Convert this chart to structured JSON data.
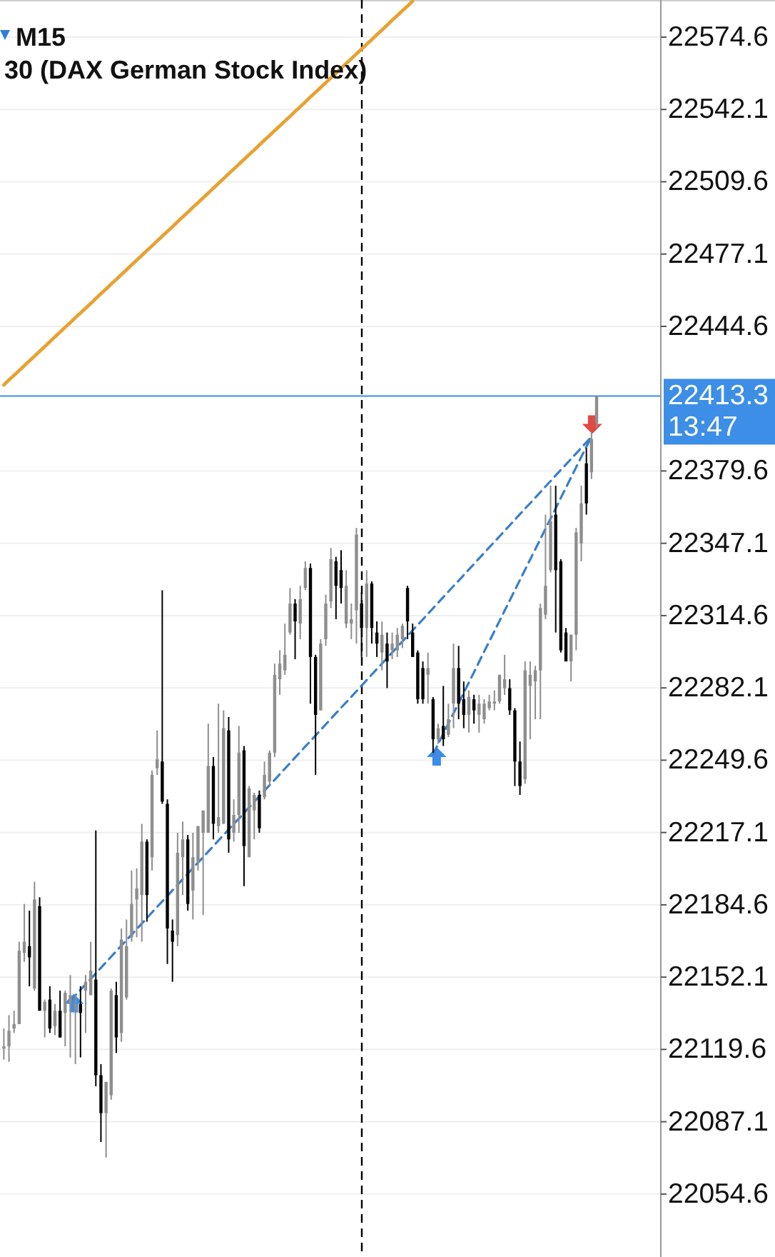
{
  "chart_data": {
    "type": "candlestick",
    "title": "M15",
    "subtitle": "30 (DAX German Stock Index)",
    "categories": [
      null,
      null,
      null,
      null,
      null,
      null,
      null,
      null,
      null,
      null,
      null,
      null,
      null,
      null,
      null,
      null,
      null,
      null,
      null,
      null,
      null,
      null,
      null,
      null,
      null,
      null,
      null,
      null,
      null,
      null,
      null,
      null,
      null,
      null,
      null,
      null,
      null,
      null,
      null,
      null,
      null,
      null,
      null,
      null,
      null,
      null,
      null,
      null,
      null,
      null,
      null,
      null,
      null,
      null,
      null,
      null,
      null,
      null,
      null,
      null,
      null,
      null,
      null,
      null,
      null,
      null,
      null,
      null,
      null,
      null,
      null,
      null,
      null,
      null,
      null,
      null,
      null,
      null,
      null,
      null,
      null,
      null,
      null,
      null,
      null,
      null,
      null,
      null,
      null,
      null,
      null,
      null,
      null,
      null,
      null,
      null,
      null,
      null,
      null,
      null,
      null,
      null,
      null,
      null,
      null,
      null,
      null,
      null,
      null,
      null,
      null,
      null,
      null,
      null,
      null,
      null,
      null
    ],
    "ohlc": [
      [
        22120,
        22129,
        22115,
        22121
      ],
      [
        22121,
        22135,
        22114,
        22128
      ],
      [
        22129,
        22137,
        22127,
        22131
      ],
      [
        22131,
        22168,
        22131,
        22164
      ],
      [
        22163,
        22185,
        22159,
        22168
      ],
      [
        22166,
        22182,
        22148,
        22161
      ],
      [
        22147,
        22195,
        22146,
        22187
      ],
      [
        22184,
        22188,
        22137,
        22137
      ],
      [
        22137,
        22142,
        22125,
        22141
      ],
      [
        22142,
        22148,
        22127,
        22129
      ],
      [
        22130,
        22140,
        22126,
        22137
      ],
      [
        22137,
        22146,
        22125,
        22125
      ],
      [
        22136,
        22146,
        22121,
        22145
      ],
      [
        22140,
        22153,
        22116,
        22144
      ],
      [
        22137,
        22144,
        22113,
        22140
      ],
      [
        22140,
        22148,
        22116,
        22136
      ],
      [
        22146,
        22153,
        22127,
        22150
      ],
      [
        22144,
        22168,
        22144,
        22155
      ],
      [
        22151,
        22218,
        22103,
        22108
      ],
      [
        22108,
        22113,
        22078,
        22091
      ],
      [
        22091,
        22105,
        22071,
        22105
      ],
      [
        22099,
        22147,
        22097,
        22146
      ],
      [
        22144,
        22150,
        22118,
        22125
      ],
      [
        22127,
        22174,
        22123,
        22169
      ],
      [
        22143,
        22178,
        22142,
        22166
      ],
      [
        22170,
        22200,
        22168,
        22185
      ],
      [
        22187,
        22201,
        22170,
        22192
      ],
      [
        22189,
        22221,
        22168,
        22213
      ],
      [
        22213,
        22214,
        22177,
        22189
      ],
      [
        22206,
        22245,
        22200,
        22243
      ],
      [
        22246,
        22263,
        22243,
        22250
      ],
      [
        22249,
        22326,
        22230,
        22231
      ],
      [
        22230,
        22232,
        22158,
        22174
      ],
      [
        22173,
        22178,
        22150,
        22168
      ],
      [
        22171,
        22217,
        22166,
        22208
      ],
      [
        22206,
        22222,
        22189,
        22214
      ],
      [
        22214,
        22216,
        22182,
        22185
      ],
      [
        22191,
        22217,
        22178,
        22206
      ],
      [
        22204,
        22220,
        22200,
        22220
      ],
      [
        22217,
        22227,
        22180,
        22227
      ],
      [
        22217,
        22266,
        22217,
        22247
      ],
      [
        22247,
        22251,
        22214,
        22221
      ],
      [
        22220,
        22275,
        22217,
        22224
      ],
      [
        22221,
        22272,
        22221,
        22264
      ],
      [
        22263,
        22269,
        22208,
        22214
      ],
      [
        22217,
        22232,
        22213,
        22225
      ],
      [
        22225,
        22265,
        22217,
        22253
      ],
      [
        22254,
        22256,
        22193,
        22211
      ],
      [
        22206,
        22238,
        22206,
        22237
      ],
      [
        22227,
        22235,
        22214,
        22234
      ],
      [
        22234,
        22236,
        22217,
        22219
      ],
      [
        22233,
        22249,
        22232,
        22243
      ],
      [
        22240,
        22254,
        22238,
        22253
      ],
      [
        22253,
        22293,
        22251,
        22288
      ],
      [
        22286,
        22299,
        22279,
        22293
      ],
      [
        22290,
        22311,
        22288,
        22297
      ],
      [
        22307,
        22327,
        22306,
        22320
      ],
      [
        22320,
        22322,
        22295,
        22312
      ],
      [
        22311,
        22328,
        22304,
        22322
      ],
      [
        22327,
        22339,
        22326,
        22336
      ],
      [
        22336,
        22338,
        22275,
        22296
      ],
      [
        22296,
        22297,
        22243,
        22270
      ],
      [
        22272,
        22304,
        22272,
        22302
      ],
      [
        22304,
        22324,
        22301,
        22320
      ],
      [
        22321,
        22345,
        22318,
        22340
      ],
      [
        22339,
        22341,
        22313,
        22328
      ],
      [
        22335,
        22344,
        22320,
        22327
      ],
      [
        22311,
        22335,
        22309,
        22328
      ],
      [
        22311,
        22320,
        22304,
        22313
      ],
      [
        22317,
        22354,
        22302,
        22351
      ],
      [
        22320,
        22325,
        22296,
        22309
      ],
      [
        22309,
        22335,
        22296,
        22329
      ],
      [
        22329,
        22330,
        22302,
        22309
      ],
      [
        22307,
        22312,
        22296,
        22302
      ],
      [
        22298,
        22312,
        22290,
        22306
      ],
      [
        22302,
        22307,
        22282,
        22294
      ],
      [
        22299,
        22307,
        22295,
        22302
      ],
      [
        22299,
        22309,
        22296,
        22306
      ],
      [
        22304,
        22311,
        22300,
        22310
      ],
      [
        22327,
        22328,
        22304,
        22312
      ],
      [
        22307,
        22311,
        22296,
        22296
      ],
      [
        22298,
        22299,
        22275,
        22277
      ],
      [
        22291,
        22294,
        22275,
        22277
      ],
      [
        22288,
        22298,
        22275,
        22291
      ],
      [
        22277,
        22278,
        22253,
        22259
      ],
      [
        22259,
        22266,
        22257,
        22264
      ],
      [
        22265,
        22283,
        22256,
        22259
      ],
      [
        22261,
        22275,
        22260,
        22268
      ],
      [
        22275,
        22302,
        22264,
        22291
      ],
      [
        22291,
        22301,
        22268,
        22275
      ],
      [
        22277,
        22285,
        22264,
        22270
      ],
      [
        22270,
        22281,
        22262,
        22278
      ],
      [
        22277,
        22279,
        22266,
        22272
      ],
      [
        22270,
        22279,
        22262,
        22275
      ],
      [
        22268,
        22277,
        22266,
        22275
      ],
      [
        22273,
        22279,
        22272,
        22276
      ],
      [
        22275,
        22281,
        22272,
        22276
      ],
      [
        22276,
        22288,
        22275,
        22288
      ],
      [
        22282,
        22297,
        22279,
        22286
      ],
      [
        22282,
        22286,
        22270,
        22272
      ],
      [
        22272,
        22273,
        22238,
        22249
      ],
      [
        22249,
        22258,
        22234,
        22238
      ],
      [
        22241,
        22294,
        22239,
        22290
      ],
      [
        22283,
        22294,
        22259,
        22288
      ],
      [
        22285,
        22292,
        22268,
        22290
      ],
      [
        22290,
        22320,
        22268,
        22318
      ],
      [
        22315,
        22360,
        22313,
        22328
      ],
      [
        22335,
        22373,
        22334,
        22357
      ],
      [
        22360,
        22373,
        22307,
        22335
      ],
      [
        22339,
        22340,
        22298,
        22299
      ],
      [
        22307,
        22309,
        22294,
        22294
      ],
      [
        22294,
        22306,
        22285,
        22306
      ],
      [
        22306,
        22354,
        22299,
        22352
      ],
      [
        22347,
        22373,
        22339,
        22365
      ],
      [
        22383,
        22390,
        22360,
        22365
      ],
      [
        22379,
        22397,
        22376,
        22394
      ],
      [
        22401,
        22413.3,
        22399,
        22413.3
      ]
    ],
    "colors": [
      "#8e8e8e",
      "#8e8e8e",
      "#8e8e8e",
      "#8e8e8e",
      "#8e8e8e",
      "#000000",
      "#8e8e8e",
      "#000000",
      "#8e8e8e",
      "#000000",
      "#8e8e8e",
      "#000000",
      "#8e8e8e",
      "#8e8e8e",
      "#8e8e8e",
      "#000000",
      "#8e8e8e",
      "#8e8e8e",
      "#000000",
      "#000000",
      "#8e8e8e",
      "#8e8e8e",
      "#000000",
      "#8e8e8e",
      "#8e8e8e",
      "#8e8e8e",
      "#8e8e8e",
      "#8e8e8e",
      "#000000",
      "#8e8e8e",
      "#8e8e8e",
      "#000000",
      "#000000",
      "#000000",
      "#8e8e8e",
      "#8e8e8e",
      "#000000",
      "#8e8e8e",
      "#8e8e8e",
      "#8e8e8e",
      "#8e8e8e",
      "#000000",
      "#8e8e8e",
      "#8e8e8e",
      "#000000",
      "#8e8e8e",
      "#8e8e8e",
      "#000000",
      "#8e8e8e",
      "#8e8e8e",
      "#000000",
      "#8e8e8e",
      "#8e8e8e",
      "#8e8e8e",
      "#8e8e8e",
      "#8e8e8e",
      "#8e8e8e",
      "#000000",
      "#8e8e8e",
      "#8e8e8e",
      "#000000",
      "#000000",
      "#8e8e8e",
      "#8e8e8e",
      "#8e8e8e",
      "#000000",
      "#000000",
      "#8e8e8e",
      "#8e8e8e",
      "#8e8e8e",
      "#000000",
      "#8e8e8e",
      "#000000",
      "#000000",
      "#8e8e8e",
      "#000000",
      "#8e8e8e",
      "#8e8e8e",
      "#8e8e8e",
      "#000000",
      "#000000",
      "#000000",
      "#000000",
      "#8e8e8e",
      "#000000",
      "#8e8e8e",
      "#000000",
      "#8e8e8e",
      "#8e8e8e",
      "#000000",
      "#000000",
      "#8e8e8e",
      "#000000",
      "#8e8e8e",
      "#8e8e8e",
      "#8e8e8e",
      "#8e8e8e",
      "#8e8e8e",
      "#8e8e8e",
      "#000000",
      "#000000",
      "#000000",
      "#8e8e8e",
      "#8e8e8e",
      "#8e8e8e",
      "#8e8e8e",
      "#8e8e8e",
      "#8e8e8e",
      "#000000",
      "#000000",
      "#000000",
      "#8e8e8e",
      "#8e8e8e",
      "#8e8e8e",
      "#000000",
      "#8e8e8e",
      "#8e8e8e"
    ],
    "series": [
      {
        "type": "line",
        "color": "#e6a234",
        "values": [
          22418.3,
          22420.5,
          22422.6,
          22424.8,
          22426.9,
          22429.1,
          22431.2,
          22433.4,
          22435.5,
          22437.7,
          22439.9,
          22442.0,
          22444.2,
          22446.3,
          22448.5,
          22450.6,
          22452.8,
          22454.9,
          22457.1,
          22459.3,
          22461.4,
          22463.6,
          22465.7,
          22467.9,
          22470.0,
          22472.2,
          22474.4,
          22476.5,
          22478.7,
          22480.8,
          22483.0,
          22485.1,
          22487.3,
          22489.4,
          22491.6,
          22493.8,
          22495.9,
          22498.1,
          22500.2,
          22502.4,
          22504.5,
          22506.7,
          22508.9,
          22511.0,
          22513.2,
          22515.3,
          22517.5,
          22519.6,
          22521.8,
          22523.9,
          22526.1,
          22528.3,
          22530.4,
          22532.6,
          22534.7,
          22536.9,
          22539.0,
          22541.2,
          22543.3,
          22545.5,
          22547.7,
          22549.8,
          22552.0,
          22554.1,
          22556.3,
          22558.4,
          22560.6,
          22562.8,
          22564.9,
          22567.1,
          22569.2,
          22571.4,
          22573.5,
          22575.7,
          22577.8,
          22580.0,
          22582.2,
          22584.3,
          22586.5,
          22588.6,
          22590.8,
          null,
          null,
          null,
          null,
          null,
          null,
          null,
          null,
          null,
          null,
          null,
          null,
          null,
          null,
          null,
          null,
          null,
          null,
          null,
          null,
          null,
          null,
          null,
          null,
          null,
          null,
          null,
          null,
          null,
          null,
          null,
          null,
          null,
          null,
          null,
          null
        ]
      },
      {
        "type": "line",
        "color": "#3a7fc9",
        "line_style": "dashed",
        "values": [
          null,
          null,
          null,
          null,
          null,
          null,
          null,
          null,
          null,
          null,
          null,
          null,
          null,
          22141.4,
          22143.9,
          22146.4,
          22148.9,
          22151.3,
          22153.8,
          22156.3,
          22158.8,
          22161.3,
          22163.8,
          22166.3,
          22168.7,
          22171.2,
          22173.7,
          22176.2,
          22178.7,
          22181.2,
          22183.7,
          22186.1,
          22188.6,
          22191.1,
          22193.6,
          22196.1,
          22198.6,
          22201.1,
          22203.6,
          22206.0,
          22208.5,
          22211.0,
          22213.5,
          22216.0,
          22218.5,
          22221.0,
          22223.4,
          22225.9,
          22228.4,
          22230.9,
          22233.4,
          22235.9,
          22238.4,
          22240.8,
          22243.3,
          22245.8,
          22248.3,
          22250.8,
          22253.3,
          22255.8,
          22258.2,
          22260.7,
          22263.2,
          22265.7,
          22268.2,
          22270.7,
          22273.2,
          22275.6,
          22278.1,
          22280.6,
          22283.1,
          22285.6,
          22288.1,
          22290.6,
          22293.0,
          22295.5,
          22298.0,
          22300.5,
          22303.0,
          22305.5,
          22308.0,
          22310.4,
          22312.9,
          22315.4,
          22317.9,
          22320.4,
          22322.9,
          22325.4,
          22327.9,
          22330.3,
          22332.8,
          22335.3,
          22337.8,
          22340.3,
          22342.8,
          22345.3,
          22347.7,
          22350.2,
          22352.7,
          22355.2,
          22357.7,
          22360.2,
          22362.7,
          22365.1,
          22367.6,
          22370.1,
          22372.6,
          22375.1,
          22377.6,
          22380.1,
          22382.5,
          22385.0,
          22387.5,
          22390.0,
          22392.5,
          22395.0,
          null
        ]
      },
      {
        "type": "line",
        "color": "#3a7fc9",
        "line_style": "dashed",
        "values": [
          null,
          null,
          null,
          null,
          null,
          null,
          null,
          null,
          null,
          null,
          null,
          null,
          null,
          null,
          null,
          null,
          null,
          null,
          null,
          null,
          null,
          null,
          null,
          null,
          null,
          null,
          null,
          null,
          null,
          null,
          null,
          null,
          null,
          null,
          null,
          null,
          null,
          null,
          null,
          null,
          null,
          null,
          null,
          null,
          null,
          null,
          null,
          null,
          null,
          null,
          null,
          null,
          null,
          null,
          null,
          null,
          null,
          null,
          null,
          null,
          null,
          null,
          null,
          null,
          null,
          null,
          null,
          null,
          null,
          null,
          null,
          null,
          null,
          null,
          null,
          null,
          null,
          null,
          null,
          null,
          null,
          null,
          null,
          null,
          22252.3,
          22256.9,
          22261.5,
          22266.1,
          22270.7,
          22275.3,
          22279.9,
          22284.5,
          22289.1,
          22293.8,
          22298.4,
          22303.0,
          22307.6,
          22312.2,
          22316.8,
          22321.4,
          22326.0,
          22330.6,
          22335.2,
          22339.8,
          22344.4,
          22349.0,
          22353.6,
          22358.2,
          22362.8,
          22367.5,
          22372.1,
          22376.7,
          22381.3,
          22385.9,
          22390.5,
          22395.0,
          null
        ]
      }
    ],
    "ylim": [
      22026.3,
      22591.3
    ],
    "yticks": [
      22574.6,
      22542.1,
      22509.6,
      22477.1,
      22444.6,
      22379.6,
      22347.1,
      22314.6,
      22282.1,
      22249.6,
      22217.1,
      22184.6,
      22152.1,
      22119.6,
      22087.1,
      22054.6
    ],
    "tick_labels": "y",
    "grid": "y",
    "ref_lines": [
      {
        "axis": "y",
        "value": 22413.3,
        "label": "22413.3",
        "color": "#3d8ee6"
      }
    ],
    "annotations": [
      "13:47"
    ]
  }
}
